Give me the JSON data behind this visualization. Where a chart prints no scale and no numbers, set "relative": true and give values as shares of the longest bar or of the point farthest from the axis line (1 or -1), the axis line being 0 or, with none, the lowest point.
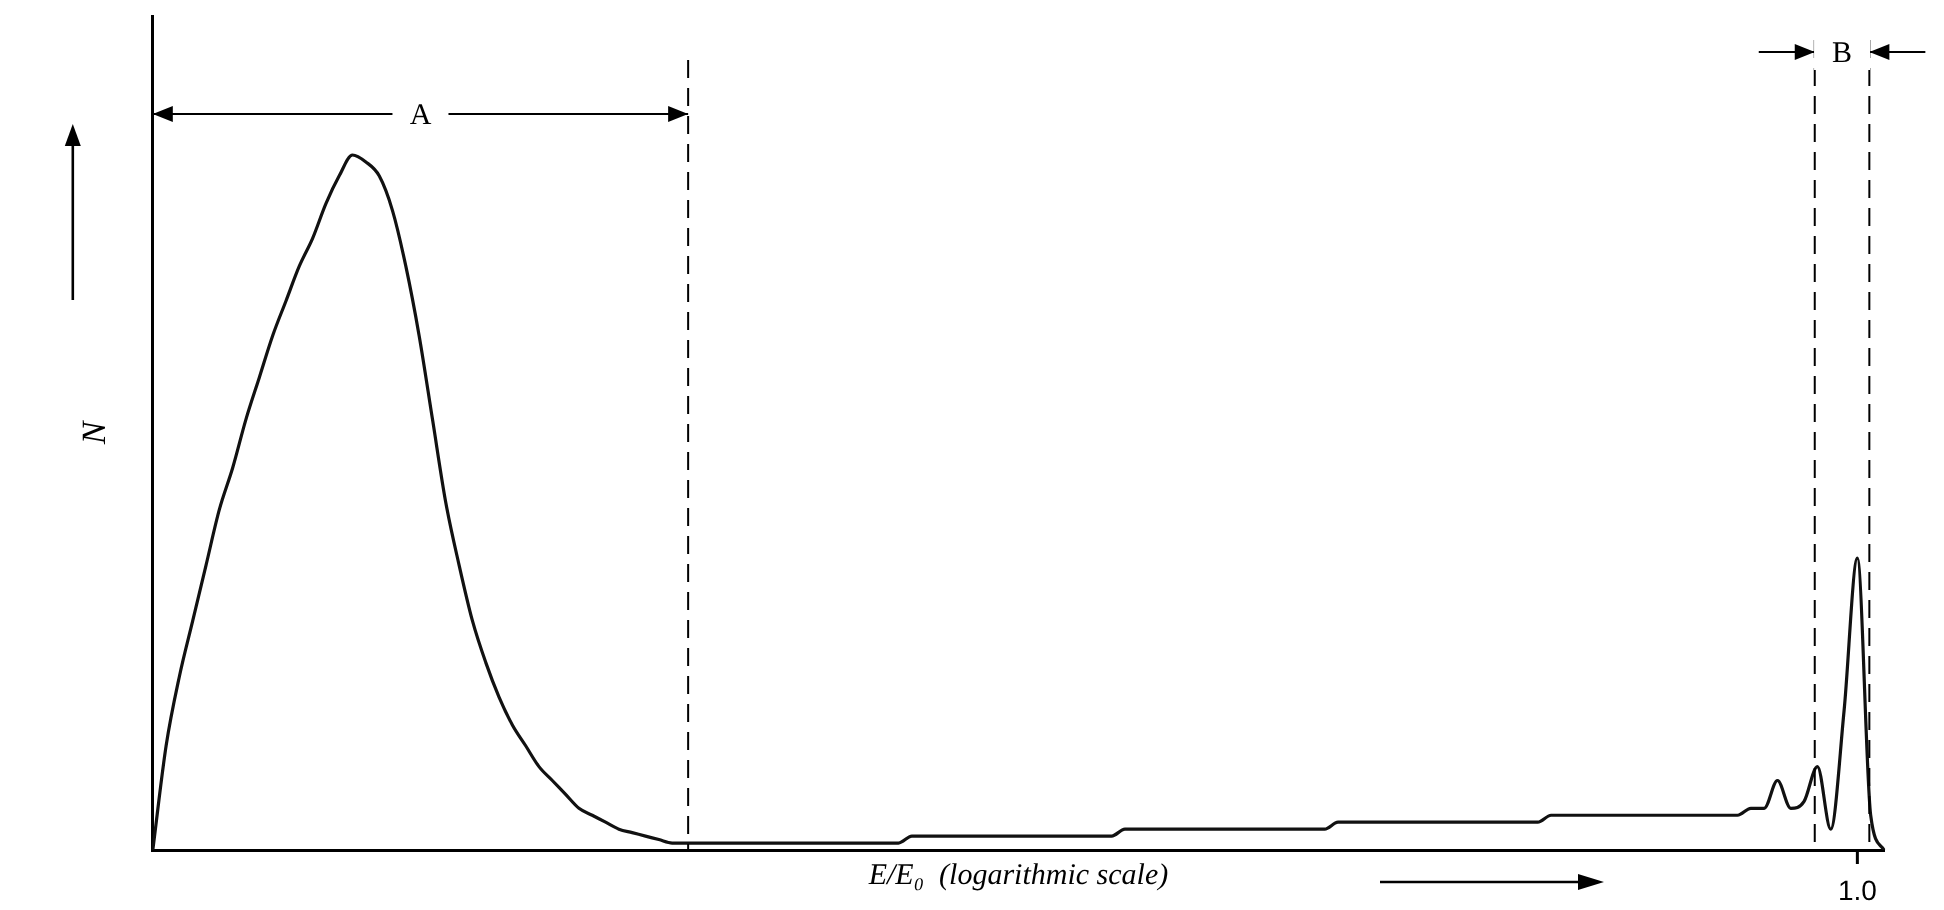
{
  "chart_data": {
    "type": "line",
    "relative": true,
    "xlabel": "E/E₀  (logarithmic scale)",
    "ylabel": "N",
    "annotations": [
      "A",
      "B",
      "1.0"
    ],
    "categories": [
      null,
      null,
      null,
      null,
      null,
      null,
      null,
      null,
      null,
      null,
      null,
      null,
      null,
      null,
      null,
      null,
      null,
      null,
      null,
      null,
      null,
      null,
      null,
      null,
      null,
      null,
      null,
      null,
      null,
      null,
      null,
      null,
      null,
      null,
      null,
      null,
      null,
      null,
      null,
      null,
      null,
      null,
      null,
      null,
      null,
      null,
      null,
      null,
      null,
      null,
      null,
      null,
      null,
      null,
      null,
      null,
      null,
      null,
      null,
      null,
      null,
      null,
      null,
      null,
      null,
      null,
      null,
      null,
      null,
      null,
      null,
      null,
      null,
      null,
      null,
      null,
      null,
      null,
      null,
      null,
      null,
      null,
      null,
      null,
      null,
      null,
      null,
      null,
      null,
      null,
      null,
      null,
      null,
      null,
      null,
      null,
      null,
      null,
      null,
      null,
      null,
      null,
      null,
      null,
      null,
      null,
      null,
      null,
      null,
      null,
      null,
      null,
      null,
      null,
      null,
      null,
      null,
      null,
      null,
      null,
      null,
      null,
      null,
      null,
      null,
      null,
      null,
      null,
      null,
      null,
      null
    ],
    "series": [
      {
        "color": "#111111",
        "values": [
          0,
          0.15,
          0.25,
          0.33,
          0.41,
          0.49,
          0.55,
          0.62,
          0.68,
          0.74,
          0.79,
          0.84,
          0.88,
          0.93,
          0.97,
          1,
          0.99,
          0.97,
          0.92,
          0.84,
          0.74,
          0.62,
          0.5,
          0.41,
          0.33,
          0.27,
          0.22,
          0.18,
          0.15,
          0.12,
          0.1,
          0.08,
          0.06,
          0.05,
          0.04,
          0.03,
          0.025,
          0.02,
          0.015,
          0.01,
          0.01,
          0.01,
          0.01,
          0.01,
          0.01,
          0.01,
          0.01,
          0.01,
          0.01,
          0.01,
          0.01,
          0.01,
          0.01,
          0.01,
          0.01,
          0.01,
          0.01,
          0.02,
          0.02,
          0.02,
          0.02,
          0.02,
          0.02,
          0.02,
          0.02,
          0.02,
          0.02,
          0.02,
          0.02,
          0.02,
          0.02,
          0.02,
          0.02,
          0.03,
          0.03,
          0.03,
          0.03,
          0.03,
          0.03,
          0.03,
          0.03,
          0.03,
          0.03,
          0.03,
          0.03,
          0.03,
          0.03,
          0.03,
          0.03,
          0.04,
          0.04,
          0.04,
          0.04,
          0.04,
          0.04,
          0.04,
          0.04,
          0.04,
          0.04,
          0.04,
          0.04,
          0.04,
          0.04,
          0.04,
          0.04,
          0.05,
          0.05,
          0.05,
          0.05,
          0.05,
          0.05,
          0.05,
          0.05,
          0.05,
          0.05,
          0.05,
          0.05,
          0.05,
          0.05,
          0.05,
          0.06,
          0.06,
          0.1,
          0.06,
          0.07,
          0.12,
          0.03,
          0.2,
          0.42,
          0.05,
          0
        ]
      }
    ]
  }
}
